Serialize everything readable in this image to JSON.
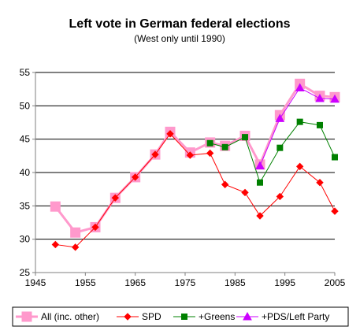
{
  "chart_data": {
    "type": "line",
    "title": "Left vote in German federal elections",
    "subtitle": "(West only until 1990)",
    "xlabel": "",
    "ylabel": "",
    "xlim": [
      1945,
      2005
    ],
    "ylim": [
      25,
      55
    ],
    "x_ticks": [
      1945,
      1955,
      1965,
      1975,
      1985,
      1995,
      2005
    ],
    "y_ticks": [
      25,
      30,
      35,
      40,
      45,
      50,
      55
    ],
    "grid": "horizontal",
    "legend_position": "bottom",
    "series": [
      {
        "name": "All (inc. other)",
        "color": "#ff99cc",
        "marker": "square",
        "points": [
          [
            1949,
            34.9
          ],
          [
            1953,
            31.0
          ],
          [
            1957,
            31.8
          ],
          [
            1961,
            36.2
          ],
          [
            1965,
            39.3
          ],
          [
            1969,
            42.7
          ],
          [
            1972,
            46.1
          ],
          [
            1976,
            43.0
          ],
          [
            1980,
            44.5
          ],
          [
            1983,
            44.0
          ],
          [
            1987,
            45.5
          ],
          [
            1990,
            41.2
          ],
          [
            1994,
            48.6
          ],
          [
            1998,
            53.3
          ],
          [
            2002,
            51.5
          ],
          [
            2005,
            51.3
          ]
        ]
      },
      {
        "name": "SPD",
        "color": "#ff0000",
        "marker": "diamond",
        "points": [
          [
            1949,
            29.2
          ],
          [
            1953,
            28.8
          ],
          [
            1957,
            31.8
          ],
          [
            1961,
            36.2
          ],
          [
            1965,
            39.3
          ],
          [
            1969,
            42.7
          ],
          [
            1972,
            45.8
          ],
          [
            1976,
            42.6
          ],
          [
            1980,
            42.9
          ],
          [
            1983,
            38.2
          ],
          [
            1987,
            37.0
          ],
          [
            1990,
            33.5
          ],
          [
            1994,
            36.4
          ],
          [
            1998,
            40.9
          ],
          [
            2002,
            38.5
          ],
          [
            2005,
            34.2
          ]
        ]
      },
      {
        "name": "+Greens",
        "color": "#008000",
        "marker": "square",
        "points": [
          [
            1980,
            44.4
          ],
          [
            1983,
            43.8
          ],
          [
            1987,
            45.3
          ],
          [
            1990,
            38.5
          ],
          [
            1994,
            43.7
          ],
          [
            1998,
            47.6
          ],
          [
            2002,
            47.1
          ],
          [
            2005,
            42.3
          ]
        ]
      },
      {
        "name": "+PDS/Left Party",
        "color": "#cc00ff",
        "marker": "triangle",
        "points": [
          [
            1990,
            41.0
          ],
          [
            1994,
            48.1
          ],
          [
            1998,
            52.7
          ],
          [
            2002,
            51.1
          ],
          [
            2005,
            51.0
          ]
        ]
      }
    ]
  }
}
